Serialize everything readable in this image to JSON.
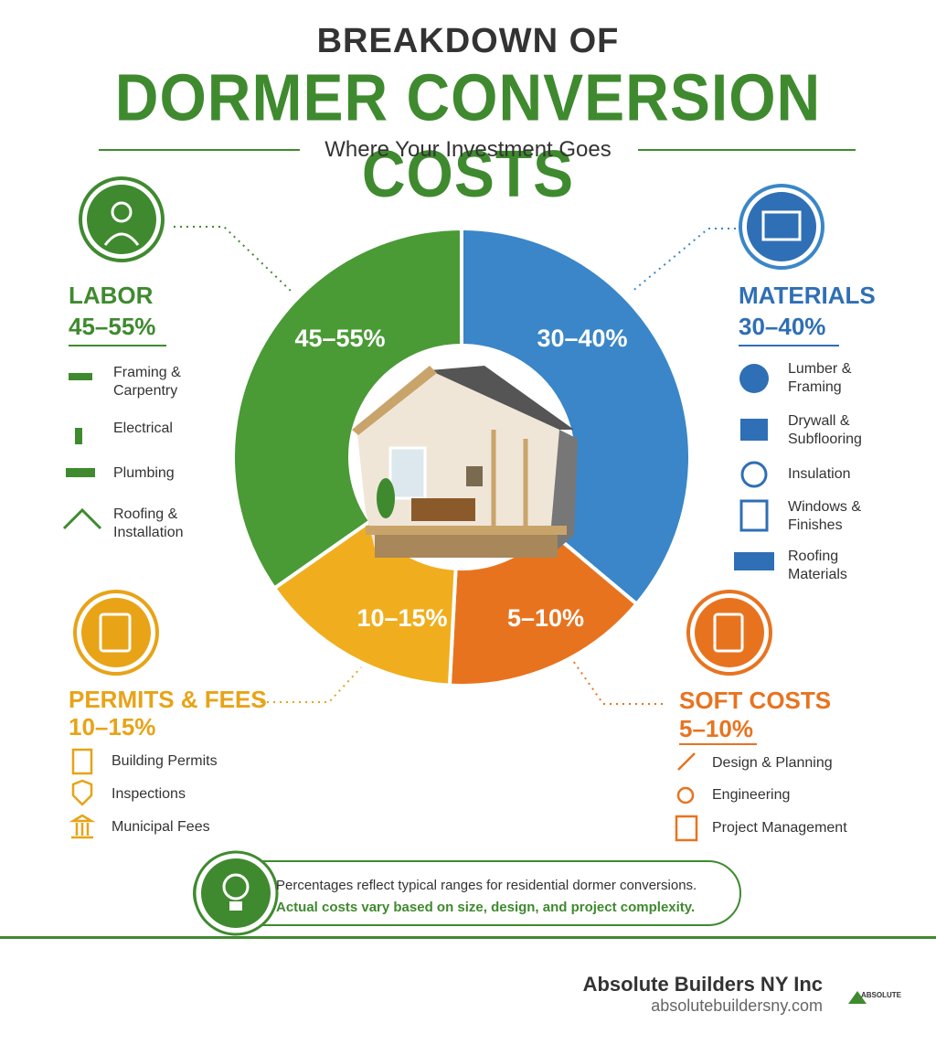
{
  "header": {
    "kicker": "BREAKDOWN OF",
    "title": "DORMER CONVERSION COSTS",
    "subtitle": "Where Your Investment Goes"
  },
  "sections": {
    "labor": {
      "title": "LABOR",
      "range": "45–55%",
      "items": [
        "Framing & Carpentry",
        "Electrical",
        "Plumbing",
        "Roofing & Installation"
      ]
    },
    "materials": {
      "title": "MATERIALS",
      "range": "30–40%",
      "items": [
        "Lumber & Framing",
        "Drywall & Subflooring",
        "Insulation",
        "Windows & Finishes",
        "Roofing Materials"
      ]
    },
    "permits": {
      "title": "PERMITS & FEES",
      "range": "10–15%",
      "items": [
        "Building Permits",
        "Inspections",
        "Municipal Fees"
      ]
    },
    "soft": {
      "title": "SOFT COSTS",
      "range": "5–10%",
      "items": [
        "Design & Planning",
        "Engineering",
        "Project Management"
      ]
    }
  },
  "note": {
    "line1": "Percentages reflect typical ranges for residential dormer conversions.",
    "line2": "Actual costs vary based on size, design, and project complexity."
  },
  "footer": {
    "company": "Absolute Builders NY Inc",
    "website": "absolutebuildersny.com",
    "logo": "ABSOLUTE"
  }
}
